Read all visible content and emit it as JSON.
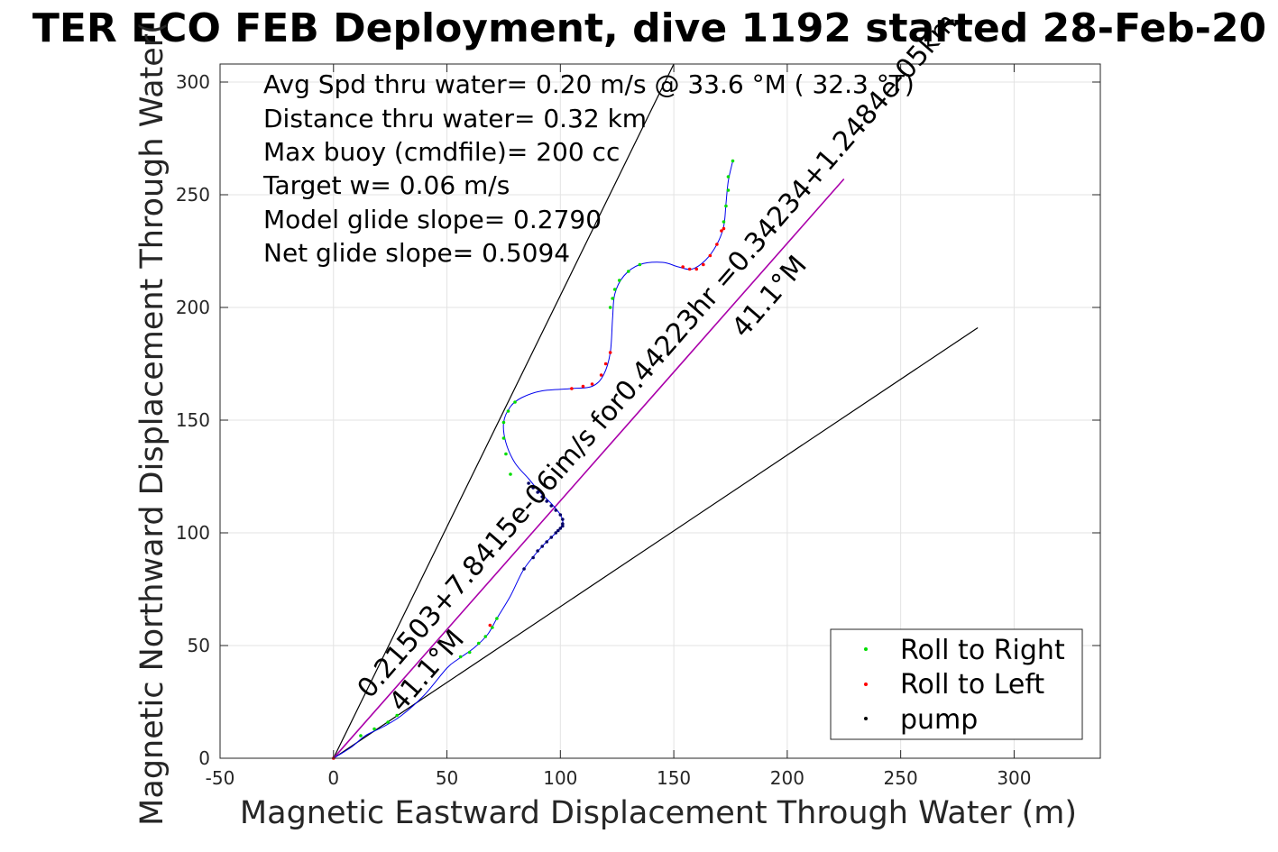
{
  "chart_data": {
    "type": "scatter",
    "title": "TER ECO FEB Deployment, dive 1192 started 28-Feb-20",
    "xlabel": "Magnetic Eastward Displacement Through Water (m)",
    "ylabel": "Magnetic Northward Displacement Through Water(",
    "xlim": [
      -50,
      338
    ],
    "ylim": [
      0,
      308
    ],
    "xticks": [
      -50,
      0,
      50,
      100,
      150,
      200,
      250,
      300
    ],
    "yticks": [
      0,
      50,
      100,
      150,
      200,
      250,
      300
    ],
    "grid": true,
    "legend_position": "bottom-right",
    "legend": [
      {
        "label": "Roll to Right",
        "color": "#00dd00"
      },
      {
        "label": "Roll to Left",
        "color": "#ff0000"
      },
      {
        "label": "pump",
        "color": "#000000"
      }
    ],
    "info_lines": [
      "Avg Spd thru water=  0.20 m/s @  33.6 °M ( 32.3 °T)",
      "Distance thru water=  0.32 km",
      "Max buoy (cmdfile)= 200 cc",
      "Target w= 0.06 m/s",
      "Model glide slope= 0.2790",
      "Net glide slope= 0.5094"
    ],
    "track": [
      [
        0,
        0
      ],
      [
        8,
        5
      ],
      [
        14,
        10
      ],
      [
        22,
        14
      ],
      [
        30,
        19
      ],
      [
        40,
        28
      ],
      [
        50,
        40
      ],
      [
        55,
        44
      ],
      [
        62,
        49
      ],
      [
        68,
        55
      ],
      [
        72,
        62
      ],
      [
        78,
        72
      ],
      [
        84,
        84
      ],
      [
        92,
        94
      ],
      [
        98,
        100
      ],
      [
        101,
        104
      ],
      [
        100,
        108
      ],
      [
        96,
        113
      ],
      [
        91,
        118
      ],
      [
        86,
        124
      ],
      [
        80,
        131
      ],
      [
        76,
        140
      ],
      [
        75,
        149
      ],
      [
        78,
        156
      ],
      [
        83,
        160
      ],
      [
        92,
        163
      ],
      [
        105,
        164
      ],
      [
        114,
        165
      ],
      [
        119,
        170
      ],
      [
        122,
        180
      ],
      [
        123,
        195
      ],
      [
        124,
        206
      ],
      [
        128,
        214
      ],
      [
        135,
        219
      ],
      [
        145,
        220
      ],
      [
        152,
        218
      ],
      [
        158,
        217
      ],
      [
        164,
        221
      ],
      [
        169,
        228
      ],
      [
        172,
        236
      ],
      [
        173,
        246
      ],
      [
        174,
        256
      ],
      [
        176,
        265
      ]
    ],
    "roll_right": [
      [
        12,
        10
      ],
      [
        18,
        13
      ],
      [
        24,
        16
      ],
      [
        28,
        19
      ],
      [
        56,
        45
      ],
      [
        60,
        47
      ],
      [
        64,
        51
      ],
      [
        67,
        54
      ],
      [
        70,
        58
      ],
      [
        72,
        62
      ],
      [
        78,
        126
      ],
      [
        76,
        135
      ],
      [
        75,
        142
      ],
      [
        75,
        149
      ],
      [
        77,
        154
      ],
      [
        80,
        158
      ],
      [
        122,
        200
      ],
      [
        123,
        204
      ],
      [
        124,
        208
      ],
      [
        126,
        212
      ],
      [
        130,
        216
      ],
      [
        135,
        219
      ],
      [
        172,
        238
      ],
      [
        173,
        245
      ],
      [
        174,
        252
      ],
      [
        174,
        258
      ],
      [
        176,
        265
      ]
    ],
    "roll_left": [
      [
        0,
        0
      ],
      [
        69,
        59
      ],
      [
        105,
        164
      ],
      [
        110,
        165
      ],
      [
        114,
        166
      ],
      [
        118,
        170
      ],
      [
        120,
        175
      ],
      [
        122,
        180
      ],
      [
        154,
        218
      ],
      [
        157,
        217
      ],
      [
        160,
        217
      ],
      [
        163,
        219
      ],
      [
        166,
        223
      ],
      [
        169,
        228
      ],
      [
        171,
        234
      ],
      [
        172,
        235
      ]
    ],
    "pump": [
      [
        84,
        84
      ],
      [
        88,
        89
      ],
      [
        90,
        92
      ],
      [
        92,
        94
      ],
      [
        94,
        96
      ],
      [
        96,
        98
      ],
      [
        98,
        100
      ],
      [
        99,
        101
      ],
      [
        100,
        102
      ],
      [
        101,
        103
      ],
      [
        101,
        104
      ],
      [
        101,
        106
      ],
      [
        100,
        108
      ],
      [
        98,
        110
      ],
      [
        96,
        112
      ],
      [
        94,
        114
      ],
      [
        92,
        116
      ],
      [
        90,
        118
      ],
      [
        88,
        120
      ],
      [
        86,
        122
      ]
    ],
    "fit_line": {
      "from": [
        0,
        0
      ],
      "to": [
        225,
        257
      ],
      "color": "#aa00aa"
    },
    "wedge_lines": [
      {
        "from": [
          0,
          0
        ],
        "to": [
          150,
          308
        ]
      },
      {
        "from": [
          0,
          0
        ],
        "to": [
          284,
          191
        ]
      }
    ],
    "annotations": [
      {
        "text": "0.21503+7.8415e-06im/s for0.44223hr =0.34234+1.2484e-05km",
        "x": 16,
        "y": 26,
        "angle": 49
      },
      {
        "text": "41.1°M",
        "x": 30,
        "y": 20,
        "angle": 49
      },
      {
        "text": "41.1°M",
        "x": 181,
        "y": 186,
        "angle": 49
      }
    ]
  }
}
